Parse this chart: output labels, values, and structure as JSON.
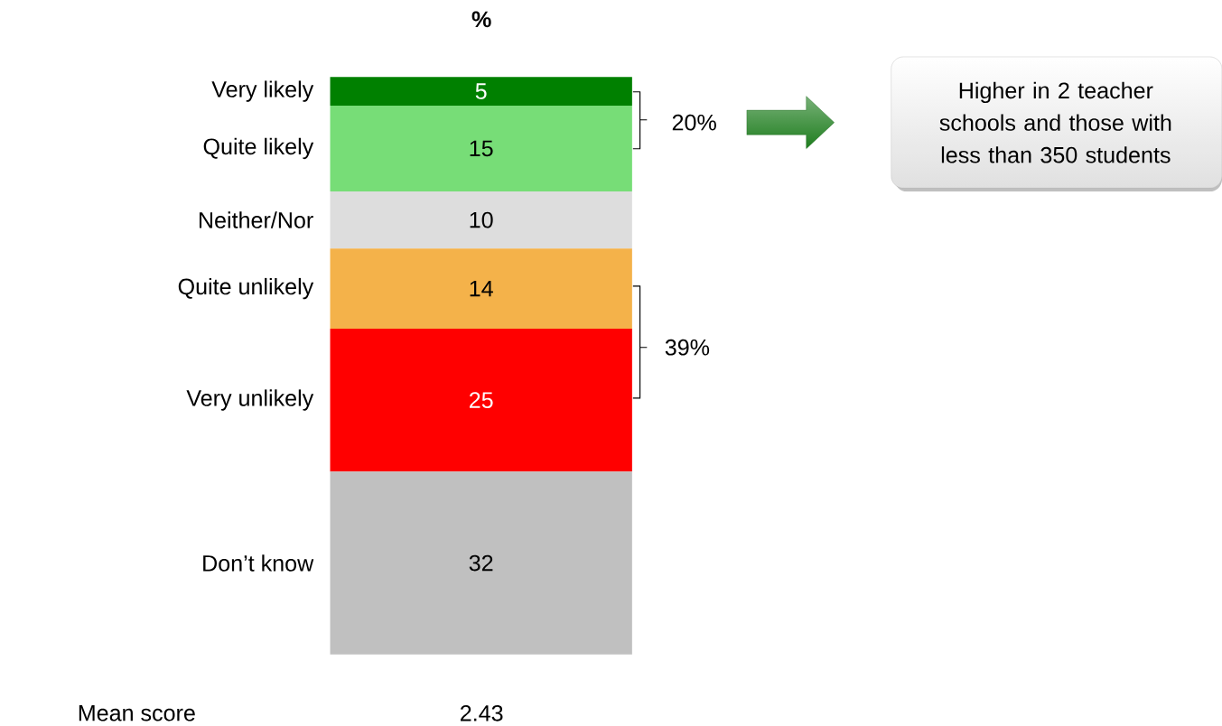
{
  "chart_data": {
    "type": "bar",
    "title": "%",
    "stacked": true,
    "categories": [
      null
    ],
    "data_labels": true,
    "legend": false,
    "series": [
      {
        "name": "Don’t know",
        "color": "#c0c0c0",
        "values": [
          32
        ]
      },
      {
        "name": "Very unlikely",
        "color": "#ff0000",
        "values": [
          25
        ]
      },
      {
        "name": "Quite unlikely",
        "color": "#f4b24a",
        "values": [
          14
        ]
      },
      {
        "name": "Neither/Nor",
        "color": "#dddddd",
        "values": [
          10
        ]
      },
      {
        "name": "Quite likely",
        "color": "#77dd77",
        "values": [
          15
        ]
      },
      {
        "name": "Very likely",
        "color": "#008000",
        "values": [
          5
        ]
      }
    ],
    "annotations": [
      "20%",
      "39%",
      "Higher in 2 teacher schools and those with less than 350 students",
      "Mean score",
      "2.43"
    ]
  }
}
